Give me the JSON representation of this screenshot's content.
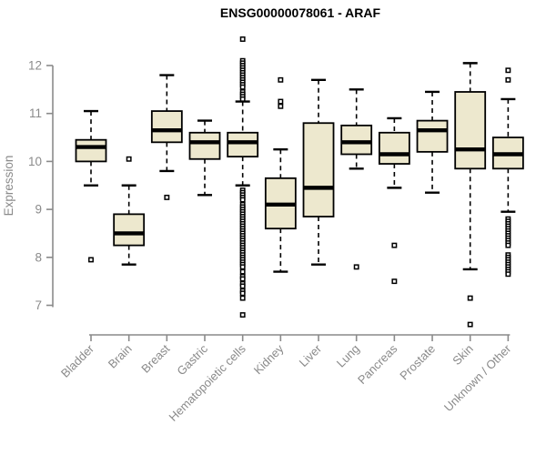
{
  "chart_data": {
    "type": "boxplot",
    "title": "ENSG00000078061 - ARAF",
    "ylabel": "Expression",
    "xlabel": "",
    "ylim": [
      7,
      12
    ],
    "yticks": [
      7,
      8,
      9,
      10,
      11,
      12
    ],
    "grid": false,
    "legend": false,
    "categories": [
      "Bladder",
      "Brain",
      "Breast",
      "Gastric",
      "Hematopoietic cells",
      "Kidney",
      "Liver",
      "Lung",
      "Pancreas",
      "Prostate",
      "Skin",
      "Unknown / Other"
    ],
    "series": [
      {
        "name": "Bladder",
        "low": 9.5,
        "q1": 10.0,
        "median": 10.3,
        "q3": 10.45,
        "high": 11.05,
        "outliers": [
          7.95
        ]
      },
      {
        "name": "Brain",
        "low": 7.85,
        "q1": 8.25,
        "median": 8.5,
        "q3": 8.9,
        "high": 9.5,
        "outliers": [
          10.05
        ]
      },
      {
        "name": "Breast",
        "low": 9.8,
        "q1": 10.4,
        "median": 10.65,
        "q3": 11.05,
        "high": 11.8,
        "outliers": [
          9.25
        ]
      },
      {
        "name": "Gastric",
        "low": 9.3,
        "q1": 10.05,
        "median": 10.4,
        "q3": 10.6,
        "high": 10.85,
        "outliers": []
      },
      {
        "name": "Hematopoietic cells",
        "low": 9.5,
        "q1": 10.1,
        "median": 10.4,
        "q3": 10.6,
        "high": 11.25,
        "outliers": [
          12.55,
          12.1,
          12.05,
          12.0,
          11.95,
          11.9,
          11.85,
          11.8,
          11.75,
          11.7,
          11.65,
          11.6,
          11.55,
          11.45,
          11.4,
          11.35,
          11.3,
          9.4,
          9.35,
          9.3,
          9.25,
          9.2,
          9.1,
          9.05,
          9.0,
          8.95,
          8.9,
          8.85,
          8.8,
          8.75,
          8.7,
          8.65,
          8.6,
          8.55,
          8.5,
          8.45,
          8.4,
          8.35,
          8.3,
          8.25,
          8.2,
          8.15,
          8.1,
          8.05,
          8.0,
          7.95,
          7.9,
          7.85,
          7.8,
          7.7,
          7.6,
          7.55,
          7.45,
          7.4,
          7.3,
          7.25,
          7.15,
          6.8
        ]
      },
      {
        "name": "Kidney",
        "low": 7.7,
        "q1": 8.6,
        "median": 9.1,
        "q3": 9.65,
        "high": 10.25,
        "outliers": [
          11.7,
          11.25,
          11.15
        ]
      },
      {
        "name": "Liver",
        "low": 7.85,
        "q1": 8.85,
        "median": 9.45,
        "q3": 10.8,
        "high": 11.7,
        "outliers": []
      },
      {
        "name": "Lung",
        "low": 9.85,
        "q1": 10.15,
        "median": 10.4,
        "q3": 10.75,
        "high": 11.5,
        "outliers": [
          7.8
        ]
      },
      {
        "name": "Pancreas",
        "low": 9.45,
        "q1": 9.95,
        "median": 10.15,
        "q3": 10.6,
        "high": 10.9,
        "outliers": [
          8.25,
          7.5
        ]
      },
      {
        "name": "Prostate",
        "low": 9.35,
        "q1": 10.2,
        "median": 10.65,
        "q3": 10.85,
        "high": 11.45,
        "outliers": []
      },
      {
        "name": "Skin",
        "low": 7.75,
        "q1": 9.85,
        "median": 10.25,
        "q3": 11.45,
        "high": 12.05,
        "outliers": [
          7.15,
          6.6
        ]
      },
      {
        "name": "Unknown / Other",
        "low": 8.95,
        "q1": 9.85,
        "median": 10.15,
        "q3": 10.5,
        "high": 11.3,
        "outliers": [
          11.9,
          11.7,
          8.8,
          8.75,
          8.7,
          8.65,
          8.6,
          8.55,
          8.5,
          8.45,
          8.4,
          8.35,
          8.3,
          8.25,
          8.05,
          8.0,
          7.95,
          7.9,
          7.85,
          7.8,
          7.75,
          7.7,
          7.65
        ]
      }
    ]
  },
  "colors": {
    "box_fill": "#EDE8CE",
    "box_border": "#000000",
    "median": "#000000",
    "whisker": "#000000",
    "outlier": "#000000",
    "outlier_fill": "#FFFFFF",
    "axis": "#8A8A8A",
    "tick_text": "#8A8A8A",
    "title_text": "#000000"
  }
}
